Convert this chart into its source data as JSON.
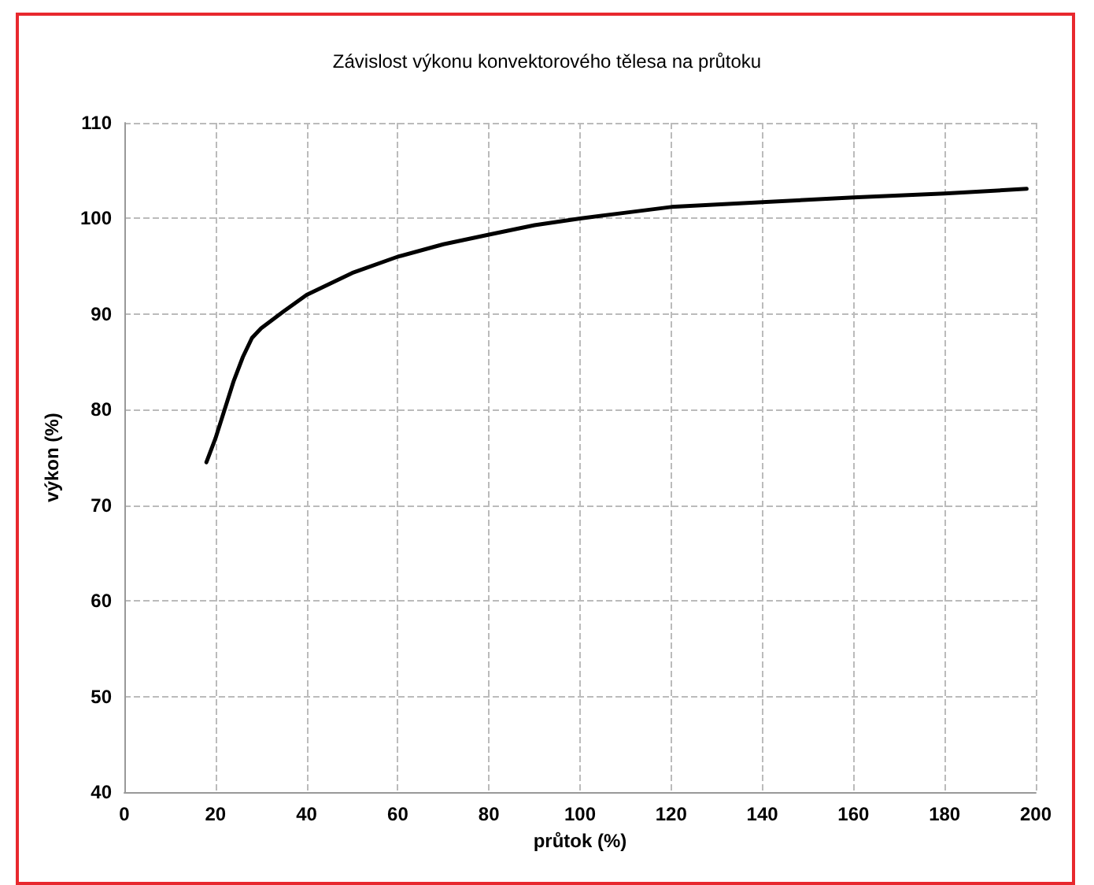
{
  "chart_data": {
    "type": "line",
    "title": "Závislost výkonu konvektorového tělesa na průtoku",
    "xlabel": "průtok (%)",
    "ylabel": "výkon (%)",
    "x": [
      18,
      20,
      22,
      24,
      26,
      28,
      30,
      35,
      40,
      50,
      60,
      70,
      80,
      90,
      100,
      110,
      120,
      140,
      160,
      180,
      198
    ],
    "series": [
      {
        "color": "#000000",
        "values": [
          74.5,
          77,
          80,
          83,
          85.5,
          87.5,
          88.5,
          90.3,
          92,
          94.3,
          96,
          97.3,
          98.3,
          99.3,
          100,
          100.6,
          101.2,
          101.7,
          102.2,
          102.6,
          103.1
        ]
      }
    ],
    "xlim": [
      0,
      200
    ],
    "xticks": [
      0,
      20,
      40,
      60,
      80,
      100,
      120,
      140,
      160,
      180,
      200
    ],
    "ylim": [
      40,
      110
    ],
    "yticks": [
      40,
      50,
      60,
      70,
      80,
      90,
      100,
      110
    ],
    "grid": true,
    "marker": "none",
    "line_style": "solid"
  }
}
